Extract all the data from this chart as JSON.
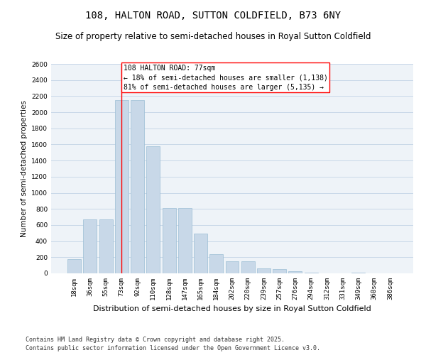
{
  "title": "108, HALTON ROAD, SUTTON COLDFIELD, B73 6NY",
  "subtitle": "Size of property relative to semi-detached houses in Royal Sutton Coldfield",
  "xlabel": "Distribution of semi-detached houses by size in Royal Sutton Coldfield",
  "ylabel": "Number of semi-detached properties",
  "categories": [
    "18sqm",
    "36sqm",
    "55sqm",
    "73sqm",
    "92sqm",
    "110sqm",
    "128sqm",
    "147sqm",
    "165sqm",
    "184sqm",
    "202sqm",
    "220sqm",
    "239sqm",
    "257sqm",
    "276sqm",
    "294sqm",
    "312sqm",
    "331sqm",
    "349sqm",
    "368sqm",
    "386sqm"
  ],
  "values": [
    180,
    670,
    670,
    2150,
    2150,
    1580,
    810,
    810,
    490,
    240,
    150,
    150,
    65,
    55,
    30,
    5,
    0,
    0,
    5,
    0,
    0
  ],
  "bar_color": "#c8d8e8",
  "bar_edgecolor": "#9bbdd4",
  "vline_x": 3,
  "annotation_title": "108 HALTON ROAD: 77sqm",
  "annotation_line1": "← 18% of semi-detached houses are smaller (1,138)",
  "annotation_line2": "81% of semi-detached houses are larger (5,135) →",
  "ylim": [
    0,
    2600
  ],
  "yticks": [
    0,
    200,
    400,
    600,
    800,
    1000,
    1200,
    1400,
    1600,
    1800,
    2000,
    2200,
    2400,
    2600
  ],
  "grid_color": "#c8d8e8",
  "background_color": "#eef3f8",
  "footer": "Contains HM Land Registry data © Crown copyright and database right 2025.\nContains public sector information licensed under the Open Government Licence v3.0.",
  "title_fontsize": 10,
  "subtitle_fontsize": 8.5,
  "annot_fontsize": 7,
  "tick_fontsize": 6.5,
  "ylabel_fontsize": 7.5,
  "xlabel_fontsize": 8,
  "footer_fontsize": 6
}
